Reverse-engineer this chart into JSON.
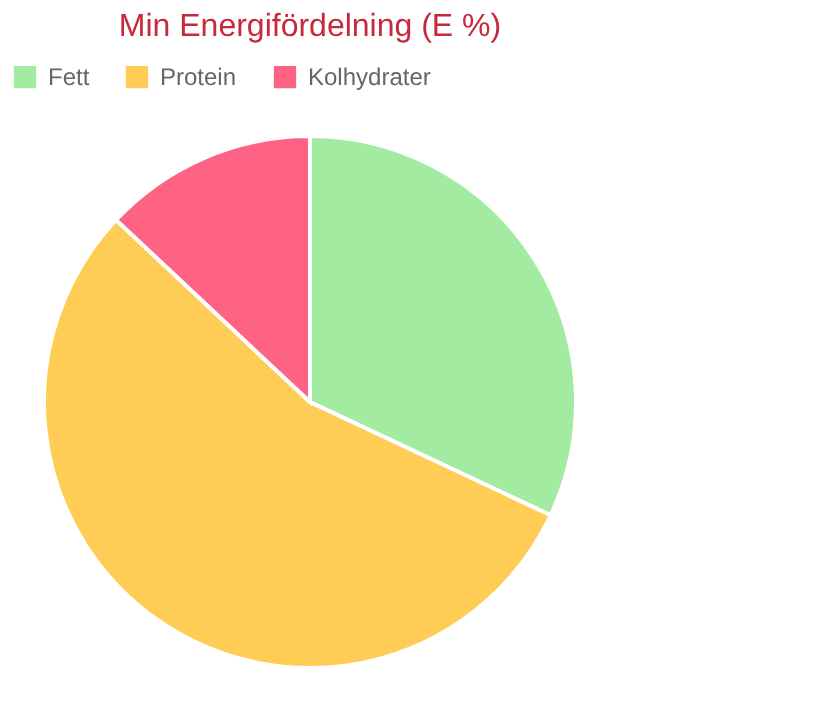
{
  "chart_data": {
    "type": "pie",
    "title": "Min Energifördelning (E %)",
    "categories": [
      "Fett",
      "Protein",
      "Kolhydrater"
    ],
    "values": [
      32,
      55,
      13
    ],
    "colors": [
      "#a3eba1",
      "#ffcd56",
      "#ff6384"
    ],
    "legend": "top"
  }
}
